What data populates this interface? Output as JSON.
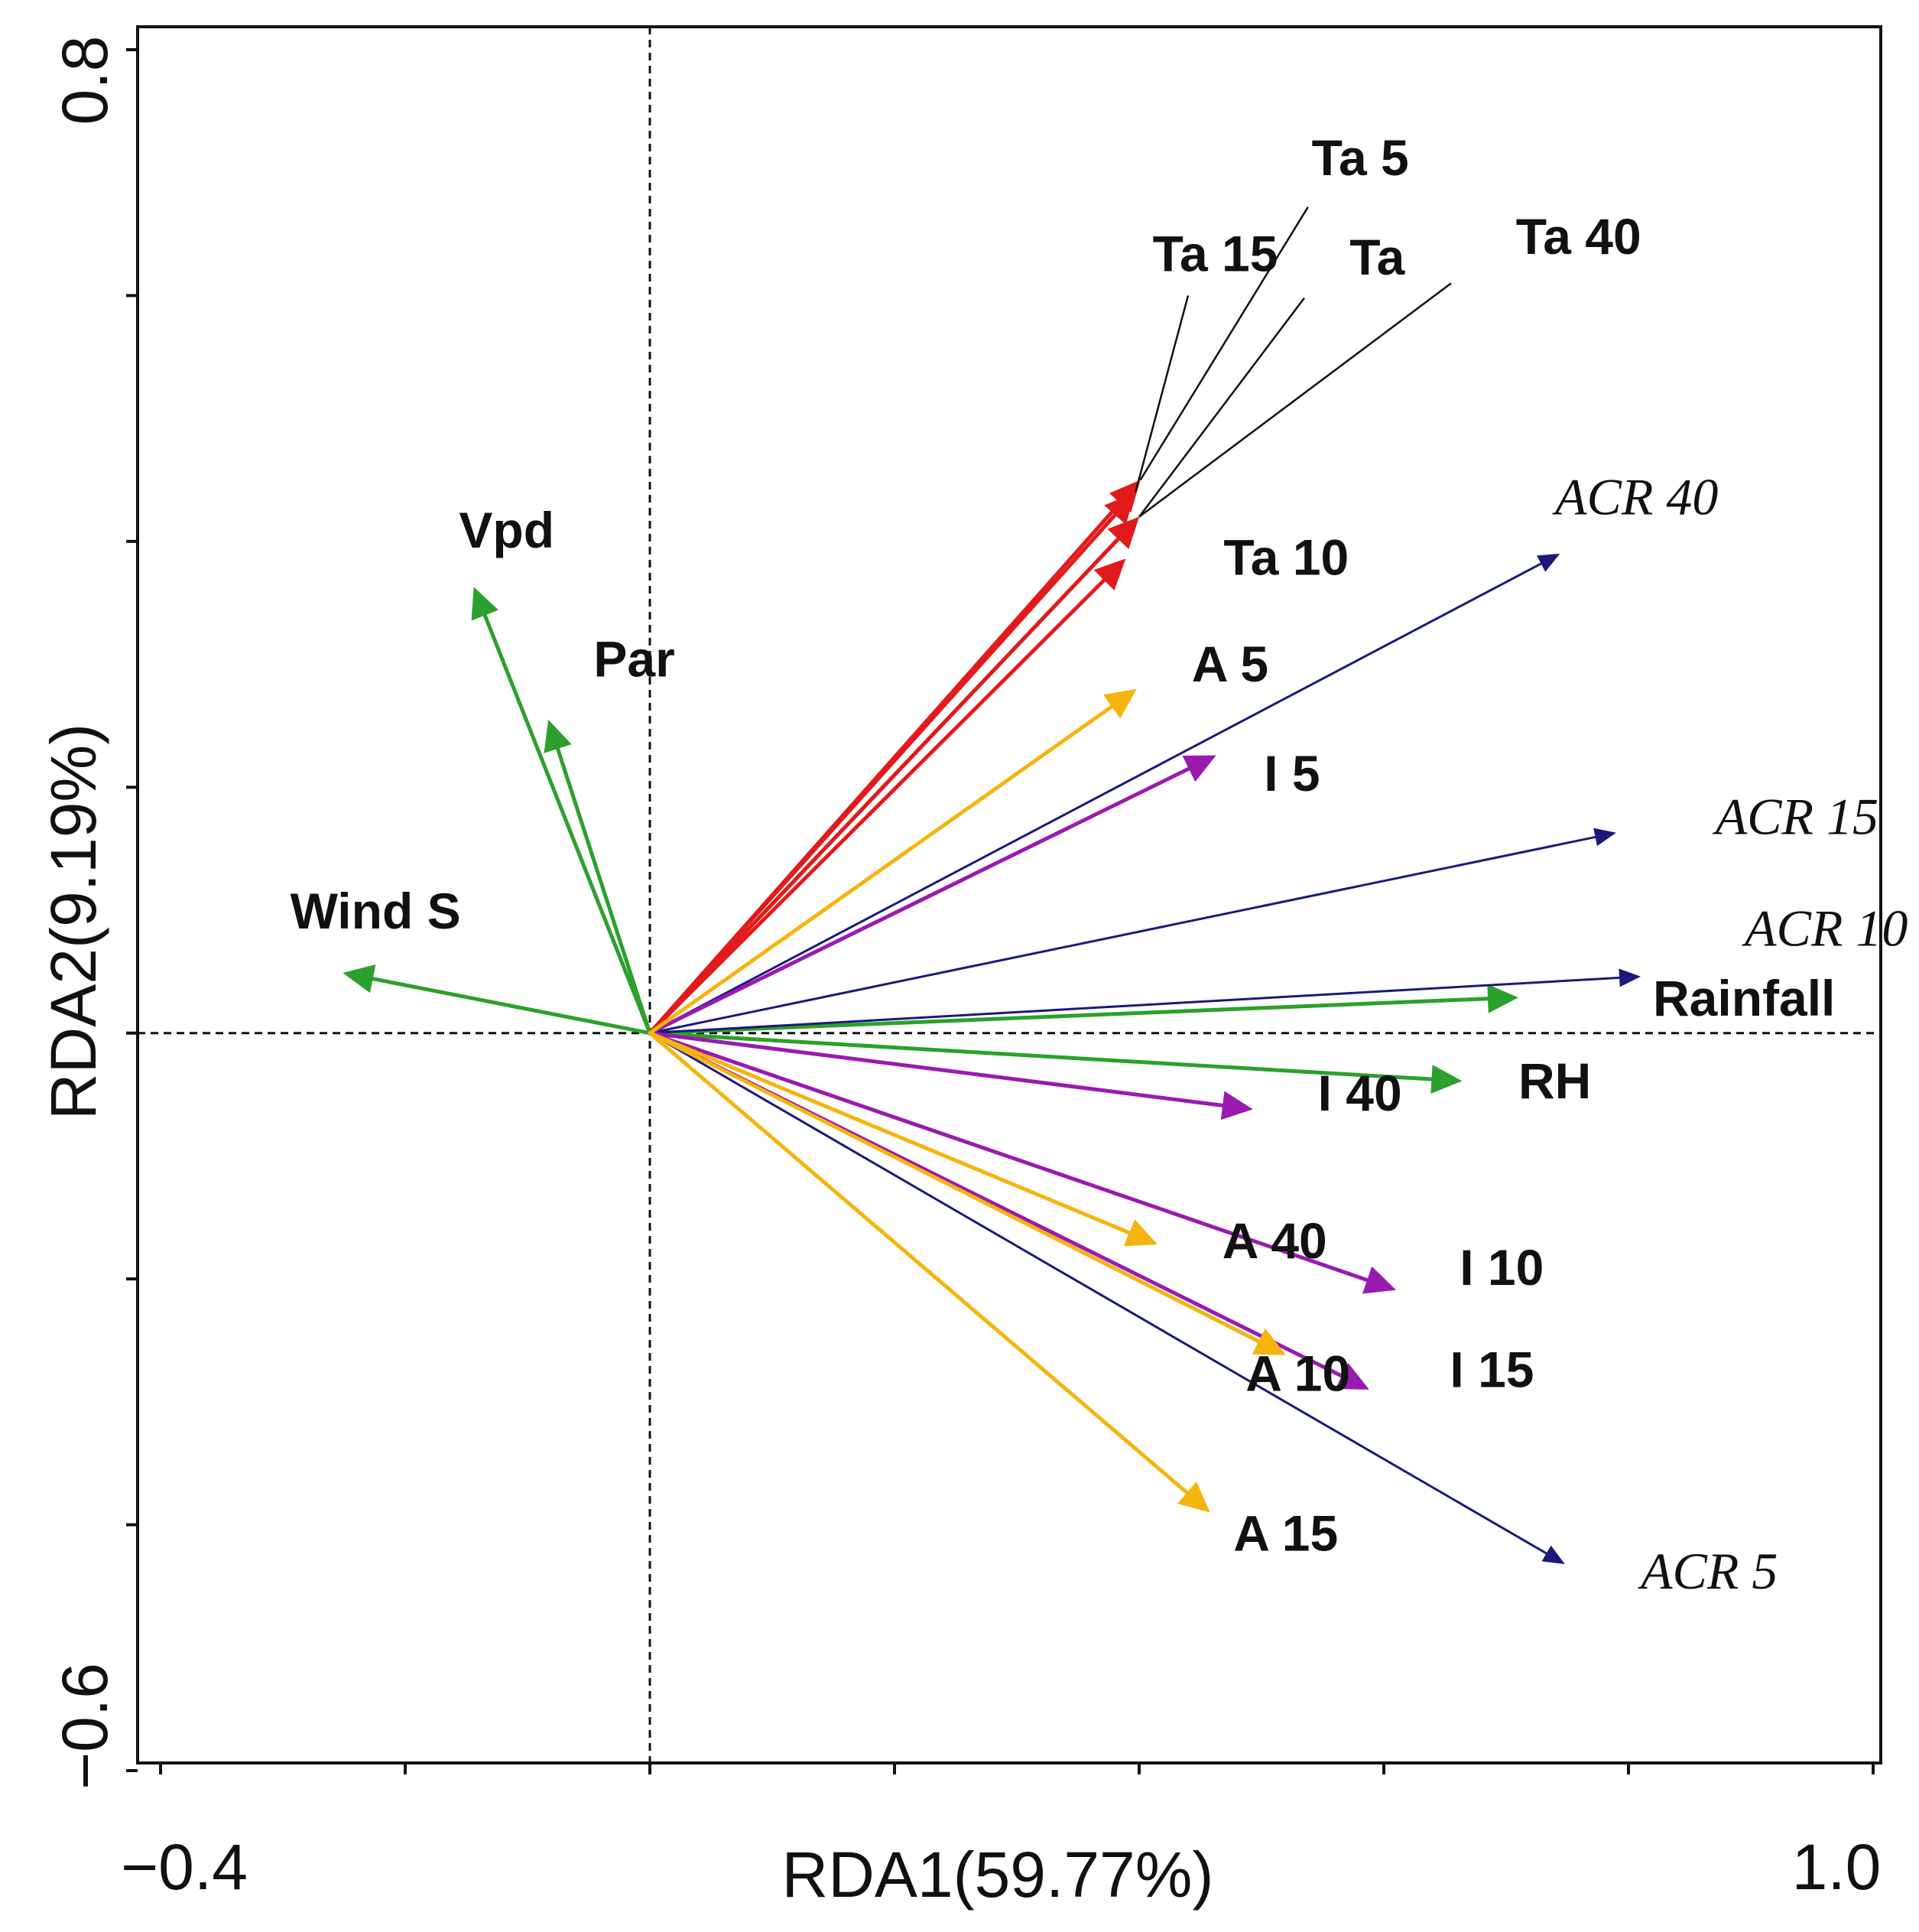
{
  "chart_data": {
    "type": "scatter",
    "subtype": "rda-biplot",
    "xlabel": "RDA1(59.77%)",
    "ylabel": "RDA2(9.19%)",
    "xlim": [
      -0.4,
      1.0
    ],
    "ylim": [
      -0.6,
      0.8
    ],
    "x_tick_labels": [
      "−0.4",
      "1.0"
    ],
    "y_tick_labels": [
      "0.8",
      "−0.6"
    ],
    "reference_lines": [
      {
        "axis": "x",
        "value": 0
      },
      {
        "axis": "y",
        "value": 0
      }
    ],
    "colors": {
      "environment": "#2ca02c",
      "soil_temperature": "#e31a1c",
      "acr": "#1a1a7a",
      "inorganic": "#9a1ab0",
      "adsorption": "#f6b40e",
      "leader": "#111111"
    },
    "vectors": [
      {
        "name": "Vpd",
        "x": -0.144,
        "y": 0.363,
        "group": "environment",
        "italic": false,
        "label_x": -0.156,
        "label_y": 0.395
      },
      {
        "name": "Par",
        "x": -0.083,
        "y": 0.255,
        "group": "environment",
        "italic": false,
        "label_x": -0.046,
        "label_y": 0.29
      },
      {
        "name": "Wind S",
        "x": -0.251,
        "y": 0.049,
        "group": "environment",
        "italic": false,
        "label_x": -0.294,
        "label_y": 0.085
      },
      {
        "name": "Rainfall",
        "x": 0.71,
        "y": 0.029,
        "group": "environment",
        "italic": false,
        "label_x": 0.82,
        "label_y": 0.014
      },
      {
        "name": "RH",
        "x": 0.664,
        "y": -0.039,
        "group": "environment",
        "italic": false,
        "label_x": 0.71,
        "label_y": -0.053
      },
      {
        "name": "Ta",
        "x": 0.4,
        "y": 0.42,
        "group": "environment",
        "italic": false,
        "label_x": 0.572,
        "label_y": 0.617
      },
      {
        "name": "Ta 5",
        "x": 0.401,
        "y": 0.45,
        "group": "soil_temperature",
        "italic": false,
        "label_x": 0.541,
        "label_y": 0.698,
        "leader_x": 0.538,
        "leader_y": 0.672
      },
      {
        "name": "Ta 15",
        "x": 0.397,
        "y": 0.44,
        "group": "soil_temperature",
        "italic": false,
        "label_x": 0.411,
        "label_y": 0.62,
        "leader_x": 0.44,
        "leader_y": 0.6
      },
      {
        "name": "Ta 40",
        "x": 0.4,
        "y": 0.42,
        "group": "soil_temperature",
        "italic": false,
        "label_x": 0.708,
        "label_y": 0.634,
        "leader_x": 0.655,
        "leader_y": 0.61
      },
      {
        "name": "Ta 10",
        "x": 0.389,
        "y": 0.386,
        "group": "soil_temperature",
        "italic": false,
        "label_x": 0.469,
        "label_y": 0.373
      },
      {
        "name": "ACR 40",
        "x": 0.744,
        "y": 0.39,
        "group": "acr",
        "italic": true,
        "label_x": 0.74,
        "label_y": 0.422
      },
      {
        "name": "ACR 15",
        "x": 0.79,
        "y": 0.163,
        "group": "acr",
        "italic": true,
        "label_x": 0.871,
        "label_y": 0.162
      },
      {
        "name": "ACR 10",
        "x": 0.81,
        "y": 0.046,
        "group": "acr",
        "italic": true,
        "label_x": 0.895,
        "label_y": 0.071
      },
      {
        "name": "ACR 5",
        "x": 0.748,
        "y": -0.432,
        "group": "acr",
        "italic": true,
        "label_x": 0.81,
        "label_y": -0.452
      },
      {
        "name": "I 5",
        "x": 0.463,
        "y": 0.226,
        "group": "inorganic",
        "italic": false,
        "label_x": 0.502,
        "label_y": 0.197
      },
      {
        "name": "I 40",
        "x": 0.493,
        "y": -0.062,
        "group": "inorganic",
        "italic": false,
        "label_x": 0.546,
        "label_y": -0.063
      },
      {
        "name": "I 10",
        "x": 0.61,
        "y": -0.209,
        "group": "inorganic",
        "italic": false,
        "label_x": 0.662,
        "label_y": -0.205
      },
      {
        "name": "I 15",
        "x": 0.588,
        "y": -0.29,
        "group": "inorganic",
        "italic": false,
        "label_x": 0.654,
        "label_y": -0.288
      },
      {
        "name": "A 5",
        "x": 0.398,
        "y": 0.28,
        "group": "adsorption",
        "italic": false,
        "label_x": 0.443,
        "label_y": 0.286
      },
      {
        "name": "A 40",
        "x": 0.415,
        "y": -0.172,
        "group": "adsorption",
        "italic": false,
        "label_x": 0.468,
        "label_y": -0.183
      },
      {
        "name": "A 10",
        "x": 0.52,
        "y": -0.262,
        "group": "adsorption",
        "italic": false,
        "label_x": 0.487,
        "label_y": -0.291
      },
      {
        "name": "A 15",
        "x": 0.458,
        "y": -0.39,
        "group": "adsorption",
        "italic": false,
        "label_x": 0.477,
        "label_y": -0.421
      }
    ]
  }
}
